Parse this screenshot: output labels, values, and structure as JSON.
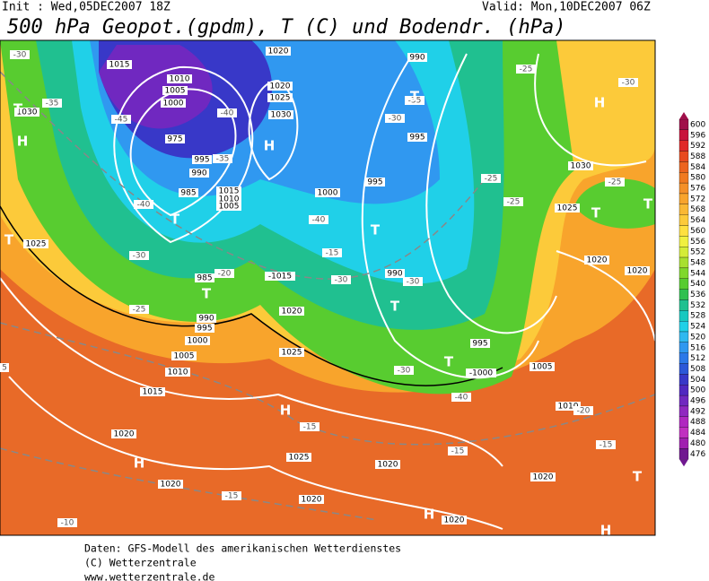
{
  "header": {
    "init": "Init : Wed,05DEC2007 18Z",
    "valid": "Valid: Mon,10DEC2007 06Z",
    "title": "500 hPa Geopot.(gpdm), T (C) und Bodendr. (hPa)"
  },
  "map": {
    "isobar_labels": [
      "1015",
      "1010",
      "1005",
      "1000",
      "975",
      "995",
      "990",
      "985",
      "1015",
      "1010",
      "1005",
      "985",
      "990",
      "995",
      "1000",
      "1005",
      "1010",
      "1015",
      "1020",
      "1020",
      "1020",
      "1020",
      "1020",
      "1020",
      "1025",
      "1025",
      "1025",
      "1020",
      "-1015",
      "1030",
      "1020",
      "1025",
      "1030",
      "990",
      "995",
      "1000",
      "995",
      "990",
      "995",
      "-1000",
      "1005",
      "1010",
      "1030",
      "1025",
      "1020",
      "1020",
      "1020"
    ],
    "temperature_labels": [
      "-30",
      "-35",
      "-45",
      "-40",
      "-35",
      "-40",
      "-30",
      "-25",
      "-20",
      "-15",
      "-40",
      "-30",
      "-30",
      "-35",
      "-30",
      "-25",
      "-30",
      "-25",
      "-25",
      "-25",
      "-20",
      "-15",
      "-15",
      "-15",
      "-15",
      "-10",
      "-30",
      "-40",
      "5"
    ],
    "centers": [
      "T",
      "H",
      "T",
      "T",
      "H",
      "T",
      "H",
      "T",
      "T",
      "T",
      "T",
      "T",
      "T",
      "H",
      "H",
      "H",
      "T",
      "H"
    ]
  },
  "colorbar": {
    "values": [
      600,
      596,
      592,
      588,
      584,
      580,
      576,
      572,
      568,
      564,
      560,
      556,
      552,
      548,
      544,
      540,
      536,
      532,
      528,
      524,
      520,
      516,
      512,
      508,
      504,
      500,
      496,
      492,
      488,
      484,
      480,
      476
    ],
    "colors": [
      "#a0104a",
      "#c8143c",
      "#e02828",
      "#e84a1e",
      "#ec641e",
      "#f07a20",
      "#f49028",
      "#f8a42c",
      "#fab834",
      "#fcca3a",
      "#fee040",
      "#f0f040",
      "#d4ec38",
      "#a8e030",
      "#80d82c",
      "#58cc30",
      "#30c050",
      "#20c090",
      "#18c8c0",
      "#20d0e8",
      "#30b8f0",
      "#3098f0",
      "#2c78e8",
      "#2c58d8",
      "#3838c8",
      "#5028c0",
      "#7028c0",
      "#9028c0",
      "#b028c0",
      "#c030c0",
      "#a020b0",
      "#701890"
    ]
  },
  "footer": {
    "line1": "Daten: GFS-Modell des amerikanischen Wetterdienstes",
    "line2": "(C) Wetterzentrale",
    "line3": "www.wetterzentrale.de"
  }
}
